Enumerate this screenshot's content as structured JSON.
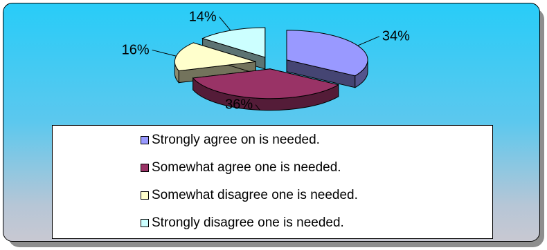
{
  "chart_data": {
    "type": "pie",
    "title": "",
    "categories": [
      "Strongly agree on is needed.",
      "Somewhat agree one is needed.",
      "Somewhat disagree one is needed.",
      "Strongly disagree one is needed."
    ],
    "values": [
      34,
      36,
      16,
      14
    ],
    "labels": [
      "34%",
      "36%",
      "16%",
      "14%"
    ],
    "colors": [
      "#9999ff",
      "#993366",
      "#ffffcc",
      "#ccffff"
    ],
    "exploded": true,
    "three_d": true,
    "legend_position": "bottom"
  }
}
